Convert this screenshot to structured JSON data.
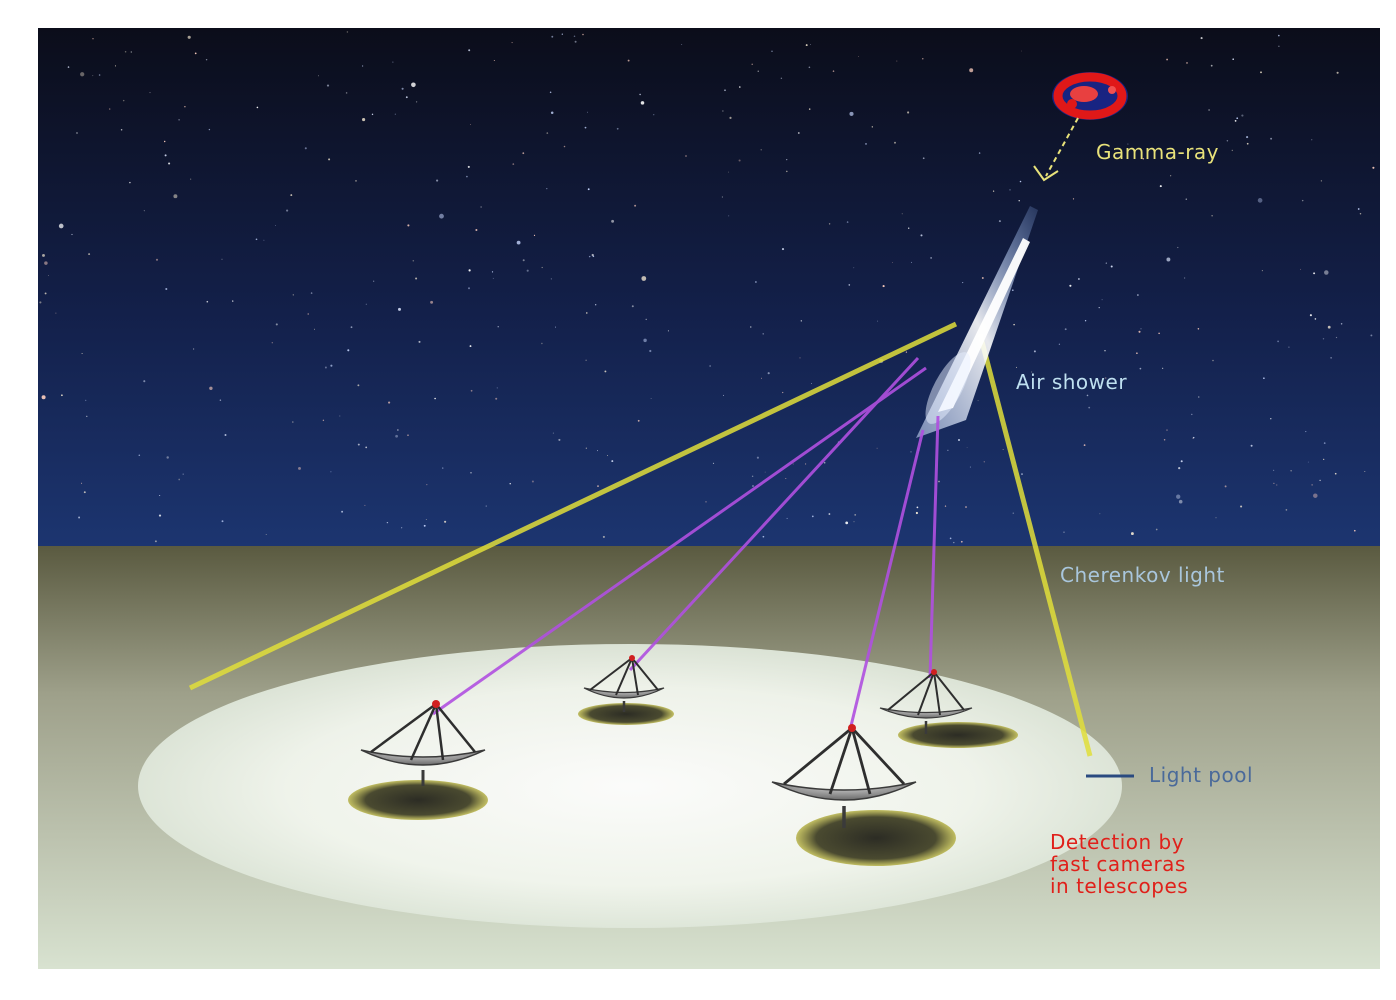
{
  "labels": {
    "gamma_ray": "Gamma-ray",
    "air_shower": "Air shower",
    "cherenkov_light": "Cherenkov light",
    "light_pool": "Light pool",
    "detection": "Detection by\nfast cameras\nin telescopes"
  },
  "colors": {
    "gamma_label": "#e8e27a",
    "shower_label": "#bfe0f0",
    "cherenkov_label": "#a9c6dc",
    "light_pool_label": "#4a6a9a",
    "detection_label": "#e0201a",
    "cone_line": "#e0de3a",
    "telescope_ray": "#b050e0",
    "source": "#e02020"
  },
  "icons": {
    "source": "gamma-ray-source-icon",
    "telescope": "telescope-dish-icon"
  }
}
